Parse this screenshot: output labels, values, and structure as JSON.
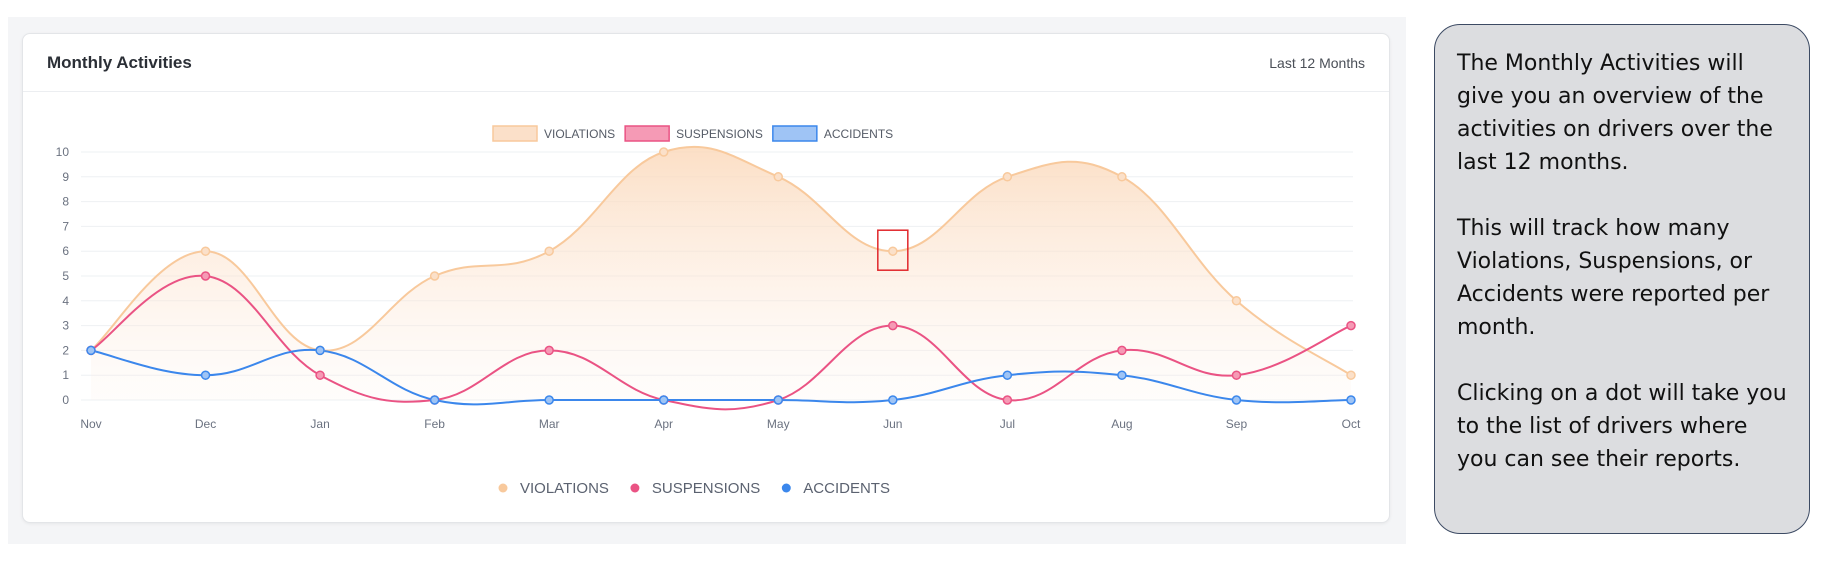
{
  "card": {
    "title": "Monthly Activities",
    "range_label": "Last 12 Months"
  },
  "note": {
    "paragraphs": [
      "The Monthly Activities will give you an overview of the activities on drivers over the last 12 months.",
      "This will track how many Violations, Suspensions, or Accidents were reported per month.",
      "Clicking on a dot will take you to the list of drivers where you can see their reports."
    ]
  },
  "chart_data": {
    "type": "area",
    "categories": [
      "Nov",
      "Dec",
      "Jan",
      "Feb",
      "Mar",
      "Apr",
      "May",
      "Jun",
      "Jul",
      "Aug",
      "Sep",
      "Oct"
    ],
    "series": [
      {
        "name": "VIOLATIONS",
        "values": [
          2,
          6,
          2,
          5,
          6,
          10,
          9,
          6,
          9,
          9,
          4,
          1
        ],
        "color": "#f8c99c",
        "fill": "#fbe0c9"
      },
      {
        "name": "SUSPENSIONS",
        "values": [
          2,
          5,
          1,
          0,
          2,
          0,
          0,
          3,
          0,
          2,
          1,
          3
        ],
        "color": "#ea5384",
        "fill": "#f59ab5"
      },
      {
        "name": "ACCIDENTS",
        "values": [
          2,
          1,
          2,
          0,
          0,
          0,
          0,
          0,
          1,
          1,
          0,
          0
        ],
        "color": "#3b87ec",
        "fill": "#9fc4f5"
      }
    ],
    "yticks": [
      "0",
      "1",
      "2",
      "3",
      "4",
      "5",
      "6",
      "7",
      "8",
      "9",
      "10"
    ],
    "ylim": [
      0,
      10
    ],
    "grid": true,
    "legend_top": "top-center",
    "legend_bottom": "bottom-center",
    "highlight_point": {
      "series": "VIOLATIONS",
      "category": "Jun"
    }
  }
}
